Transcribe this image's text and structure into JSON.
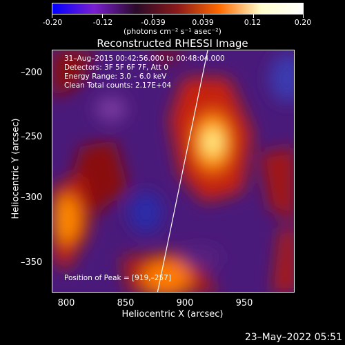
{
  "colorbar": {
    "tick_labels": [
      "-0.20",
      "-0.12",
      "-0.039",
      "0.039",
      "0.12",
      "0.20"
    ],
    "units": "(photons cm⁻² s⁻¹ asec⁻²)",
    "colors": [
      "#0000ff",
      "#7a1fd0",
      "#2a0a2a",
      "#8b1a1a",
      "#ff6a00",
      "#ffffcc",
      "#ffffff"
    ]
  },
  "plot": {
    "title": "Reconstructed RHESSI Image",
    "info": [
      "31–Aug–2015 00:42:56.000 to 00:48:04.000",
      "Detectors: 3F 5F 6F 7F, Att 0",
      "Energy Range: 3.0 – 6.0 keV",
      "Clean    Total counts: 2.17E+04"
    ],
    "peak_text": "Position of Peak = [919,–257]",
    "x_ticks": [
      "800",
      "850",
      "900",
      "950"
    ],
    "y_ticks": [
      "–200",
      "–250",
      "–300",
      "–350"
    ],
    "x_title": "Heliocentric X (arcsec)",
    "y_title": "Heliocentric Y (arcsec)"
  },
  "footer": {
    "date": "23–May–2022 05:51"
  }
}
